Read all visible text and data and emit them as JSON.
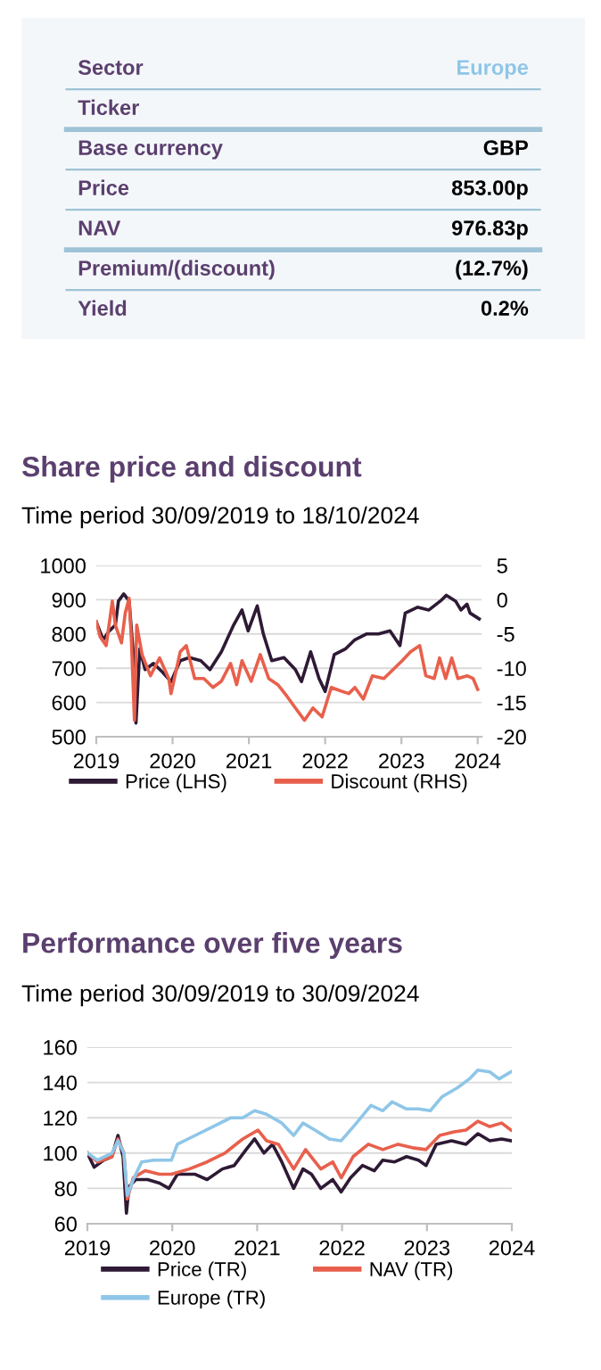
{
  "chart_data": [
    {
      "type": "other",
      "categories": [
        "Sector",
        "Ticker",
        "Base currency",
        "Price",
        "NAV",
        "Premium/(discount)",
        "Yield"
      ],
      "value_labels": [
        "Europe",
        null,
        "GBP",
        "853.00p",
        "976.83p",
        "(12.7%)",
        "0.2%"
      ]
    },
    {
      "type": "line",
      "title": "Share price and discount",
      "subtitle": "Time period 30/09/2019 to 18/10/2024",
      "xlim": [
        2019,
        2024.05
      ],
      "xticks": [
        2019,
        2020,
        2021,
        2022,
        2023,
        2024
      ],
      "ylim": [
        500,
        1000
      ],
      "yticks": [
        500,
        600,
        700,
        800,
        900,
        1000
      ],
      "y2lim": [
        -20,
        5
      ],
      "y2ticks": [
        -20,
        -15,
        -10,
        -5,
        0,
        5
      ],
      "grid": "y",
      "legend": "bottom",
      "series": [
        {
          "name": "Price (LHS)",
          "color": "#2e1a35",
          "x": [
            2019.0,
            2019.09,
            2019.17,
            2019.25,
            2019.29,
            2019.36,
            2019.43,
            2019.48,
            2019.52,
            2019.57,
            2019.64,
            2019.75,
            2019.87,
            2019.98,
            2020.1,
            2020.22,
            2020.37,
            2020.49,
            2020.64,
            2020.8,
            2020.91,
            2020.99,
            2021.11,
            2021.19,
            2021.3,
            2021.46,
            2021.61,
            2021.69,
            2021.81,
            2021.92,
            2022.0,
            2022.12,
            2022.27,
            2022.39,
            2022.54,
            2022.7,
            2022.85,
            2022.98,
            2023.05,
            2023.21,
            2023.36,
            2023.51,
            2023.59,
            2023.71,
            2023.78,
            2023.86,
            2023.9,
            2024.02
          ],
          "values": [
            835,
            783,
            809,
            826,
            896,
            917,
            896,
            757,
            540,
            757,
            696,
            714,
            688,
            661,
            722,
            731,
            722,
            696,
            748,
            826,
            870,
            809,
            882,
            800,
            722,
            731,
            696,
            661,
            748,
            670,
            632,
            740,
            757,
            783,
            800,
            800,
            809,
            766,
            861,
            878,
            870,
            896,
            913,
            896,
            870,
            887,
            861,
            844
          ]
        },
        {
          "name": "Discount (RHS)",
          "color": "#e8604c",
          "axis": "y2",
          "x": [
            2019.0,
            2019.05,
            2019.13,
            2019.21,
            2019.25,
            2019.33,
            2019.38,
            2019.43,
            2019.46,
            2019.5,
            2019.53,
            2019.6,
            2019.71,
            2019.83,
            2019.95,
            2019.98,
            2020.1,
            2020.18,
            2020.29,
            2020.41,
            2020.53,
            2020.64,
            2020.76,
            2020.84,
            2020.91,
            2021.03,
            2021.15,
            2021.26,
            2021.38,
            2021.5,
            2021.61,
            2021.73,
            2021.84,
            2021.96,
            2022.08,
            2022.2,
            2022.31,
            2022.39,
            2022.5,
            2022.62,
            2022.77,
            2022.89,
            2023.01,
            2023.12,
            2023.24,
            2023.32,
            2023.43,
            2023.5,
            2023.58,
            2023.66,
            2023.74,
            2023.86,
            2023.94,
            2024.0
          ],
          "values": [
            -3.2,
            -5.4,
            -6.7,
            -0.2,
            -3.7,
            -6.3,
            -1.9,
            0.2,
            -5.9,
            -17.6,
            -3.7,
            -8.0,
            -11.1,
            -8.5,
            -11.5,
            -13.7,
            -7.6,
            -6.7,
            -11.5,
            -11.5,
            -12.8,
            -11.9,
            -9.3,
            -12.4,
            -8.9,
            -11.9,
            -8.0,
            -11.5,
            -12.4,
            -14.1,
            -15.8,
            -17.6,
            -15.8,
            -17.1,
            -12.8,
            -13.3,
            -13.7,
            -12.8,
            -14.5,
            -11.1,
            -11.5,
            -10.2,
            -8.9,
            -7.6,
            -6.7,
            -11.1,
            -11.5,
            -8.5,
            -11.5,
            -8.5,
            -11.5,
            -11.1,
            -11.5,
            -13.1
          ]
        }
      ]
    },
    {
      "type": "line",
      "title": "Performance over five years",
      "subtitle": "Time period 30/09/2019 to 30/09/2024",
      "xlim": [
        2019,
        2024
      ],
      "xticks": [
        2019,
        2020,
        2021,
        2022,
        2023,
        2024
      ],
      "ylim": [
        60,
        160
      ],
      "yticks": [
        60,
        80,
        100,
        120,
        140,
        160
      ],
      "grid": "y",
      "legend": "bottom",
      "series": [
        {
          "name": "Price (TR)",
          "color": "#2e1a35",
          "x": [
            2019.0,
            2019.08,
            2019.19,
            2019.29,
            2019.36,
            2019.42,
            2019.46,
            2019.49,
            2019.57,
            2019.71,
            2019.85,
            2019.96,
            2020.06,
            2020.27,
            2020.41,
            2020.59,
            2020.73,
            2020.87,
            2020.97,
            2021.08,
            2021.18,
            2021.29,
            2021.43,
            2021.54,
            2021.64,
            2021.75,
            2021.89,
            2021.99,
            2022.1,
            2022.24,
            2022.38,
            2022.48,
            2022.62,
            2022.76,
            2022.9,
            2022.99,
            2023.11,
            2023.29,
            2023.46,
            2023.6,
            2023.74,
            2023.88,
            2023.99
          ],
          "values": [
            100,
            92,
            96,
            98,
            110,
            98,
            66,
            81,
            85,
            85,
            83,
            80,
            88,
            88,
            85,
            91,
            93,
            102,
            108,
            100,
            105,
            95,
            80,
            91,
            88,
            80,
            85,
            78,
            86,
            93,
            90,
            96,
            95,
            98,
            96,
            93,
            105,
            107,
            105,
            111,
            107,
            108,
            107
          ]
        },
        {
          "name": "NAV (TR)",
          "color": "#e8604c",
          "x": [
            2019.0,
            2019.12,
            2019.29,
            2019.36,
            2019.43,
            2019.47,
            2019.54,
            2019.68,
            2019.85,
            2019.99,
            2020.2,
            2020.41,
            2020.62,
            2020.83,
            2021.01,
            2021.11,
            2021.25,
            2021.43,
            2021.57,
            2021.75,
            2021.89,
            2021.99,
            2022.13,
            2022.31,
            2022.48,
            2022.66,
            2022.83,
            2022.99,
            2023.15,
            2023.32,
            2023.46,
            2023.6,
            2023.74,
            2023.88,
            2023.99
          ],
          "values": [
            100,
            95,
            98,
            108,
            100,
            74,
            86,
            90,
            88,
            88,
            91,
            95,
            100,
            108,
            113,
            107,
            105,
            91,
            102,
            91,
            95,
            86,
            98,
            105,
            102,
            105,
            103,
            102,
            110,
            112,
            113,
            118,
            115,
            117,
            113
          ]
        },
        {
          "name": "Europe (TR)",
          "color": "#8ec6e8",
          "x": [
            2019.0,
            2019.12,
            2019.29,
            2019.36,
            2019.43,
            2019.47,
            2019.54,
            2019.64,
            2019.78,
            2019.99,
            2020.06,
            2020.27,
            2020.48,
            2020.69,
            2020.83,
            2020.97,
            2021.11,
            2021.29,
            2021.43,
            2021.54,
            2021.68,
            2021.85,
            2021.99,
            2022.17,
            2022.34,
            2022.48,
            2022.59,
            2022.76,
            2022.9,
            2023.04,
            2023.18,
            2023.36,
            2023.5,
            2023.6,
            2023.74,
            2023.85,
            2023.99
          ],
          "values": [
            100,
            96,
            100,
            107,
            100,
            76,
            85,
            95,
            96,
            96,
            105,
            110,
            115,
            120,
            120,
            124,
            122,
            117,
            110,
            117,
            113,
            108,
            107,
            117,
            127,
            124,
            129,
            125,
            125,
            124,
            132,
            137,
            142,
            147,
            146,
            142,
            146
          ]
        }
      ]
    }
  ]
}
